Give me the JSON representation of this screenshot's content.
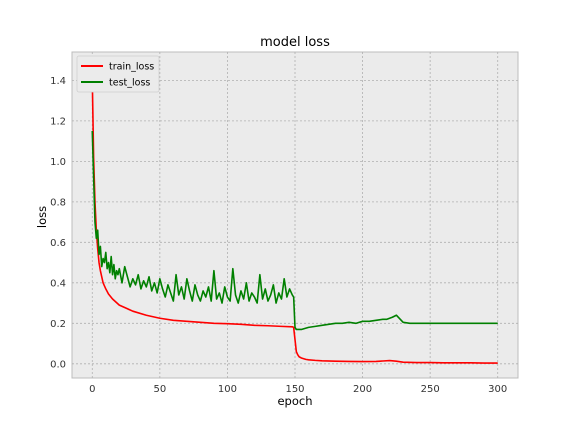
{
  "chart_data": {
    "type": "line",
    "title": "model loss",
    "xlabel": "epoch",
    "ylabel": "loss",
    "xlim": [
      -15,
      315
    ],
    "ylim": [
      -0.07,
      1.54
    ],
    "xticks": [
      0,
      50,
      100,
      150,
      200,
      250,
      300
    ],
    "yticks": [
      0.0,
      0.2,
      0.4,
      0.6,
      0.8,
      1.0,
      1.2,
      1.4
    ],
    "ytick_labels": [
      "0.0",
      "0.2",
      "0.4",
      "0.6",
      "0.8",
      "1.0",
      "1.2",
      "1.4"
    ],
    "grid": true,
    "legend_position": "top-left",
    "series": [
      {
        "name": "train_loss",
        "color": "#ff0000",
        "x": [
          0,
          1,
          2,
          3,
          4,
          5,
          6,
          7,
          8,
          10,
          12,
          15,
          20,
          25,
          30,
          40,
          50,
          60,
          70,
          80,
          90,
          100,
          110,
          120,
          130,
          140,
          148,
          149,
          150,
          151,
          152,
          153,
          155,
          158,
          160,
          165,
          170,
          180,
          190,
          200,
          210,
          215,
          220,
          225,
          230,
          240,
          250,
          260,
          270,
          280,
          290,
          300
        ],
        "y": [
          1.41,
          1.02,
          0.8,
          0.66,
          0.57,
          0.5,
          0.46,
          0.43,
          0.4,
          0.37,
          0.345,
          0.32,
          0.29,
          0.275,
          0.26,
          0.24,
          0.225,
          0.215,
          0.21,
          0.205,
          0.2,
          0.198,
          0.195,
          0.19,
          0.188,
          0.185,
          0.183,
          0.18,
          0.12,
          0.06,
          0.045,
          0.035,
          0.028,
          0.022,
          0.02,
          0.017,
          0.015,
          0.013,
          0.012,
          0.011,
          0.012,
          0.014,
          0.016,
          0.013,
          0.008,
          0.006,
          0.006,
          0.005,
          0.005,
          0.005,
          0.004,
          0.004
        ]
      },
      {
        "name": "test_loss",
        "color": "#008000",
        "x": [
          0,
          1,
          2,
          3,
          4,
          5,
          6,
          7,
          8,
          9,
          10,
          11,
          12,
          13,
          14,
          15,
          16,
          17,
          18,
          19,
          20,
          22,
          24,
          26,
          28,
          30,
          32,
          34,
          36,
          38,
          40,
          42,
          44,
          46,
          48,
          50,
          52,
          54,
          56,
          58,
          60,
          62,
          64,
          66,
          68,
          70,
          72,
          74,
          76,
          78,
          80,
          82,
          84,
          86,
          88,
          90,
          92,
          94,
          96,
          98,
          100,
          102,
          104,
          106,
          108,
          110,
          112,
          114,
          116,
          118,
          120,
          122,
          124,
          126,
          128,
          130,
          132,
          134,
          136,
          138,
          140,
          142,
          144,
          146,
          148,
          149,
          150,
          151,
          152,
          155,
          160,
          165,
          170,
          175,
          180,
          185,
          190,
          195,
          200,
          205,
          210,
          215,
          218,
          220,
          222,
          225,
          230,
          235,
          240,
          245,
          250,
          255,
          260,
          265,
          270,
          275,
          280,
          285,
          290,
          295,
          300
        ],
        "y": [
          1.15,
          0.92,
          0.7,
          0.62,
          0.66,
          0.54,
          0.58,
          0.48,
          0.52,
          0.5,
          0.55,
          0.47,
          0.5,
          0.45,
          0.53,
          0.44,
          0.49,
          0.42,
          0.46,
          0.44,
          0.47,
          0.4,
          0.48,
          0.43,
          0.38,
          0.42,
          0.39,
          0.44,
          0.37,
          0.41,
          0.38,
          0.43,
          0.36,
          0.4,
          0.35,
          0.42,
          0.37,
          0.33,
          0.39,
          0.35,
          0.31,
          0.44,
          0.34,
          0.38,
          0.32,
          0.42,
          0.36,
          0.31,
          0.39,
          0.34,
          0.31,
          0.36,
          0.33,
          0.38,
          0.31,
          0.46,
          0.32,
          0.35,
          0.3,
          0.38,
          0.33,
          0.31,
          0.47,
          0.34,
          0.3,
          0.36,
          0.32,
          0.4,
          0.31,
          0.35,
          0.33,
          0.3,
          0.44,
          0.32,
          0.37,
          0.31,
          0.34,
          0.39,
          0.3,
          0.35,
          0.32,
          0.42,
          0.33,
          0.37,
          0.34,
          0.33,
          0.18,
          0.17,
          0.17,
          0.17,
          0.18,
          0.185,
          0.19,
          0.195,
          0.2,
          0.2,
          0.205,
          0.2,
          0.21,
          0.21,
          0.215,
          0.22,
          0.22,
          0.225,
          0.23,
          0.24,
          0.205,
          0.2,
          0.2,
          0.2,
          0.2,
          0.2,
          0.2,
          0.2,
          0.2,
          0.2,
          0.2,
          0.2,
          0.2,
          0.2,
          0.2
        ]
      }
    ]
  }
}
